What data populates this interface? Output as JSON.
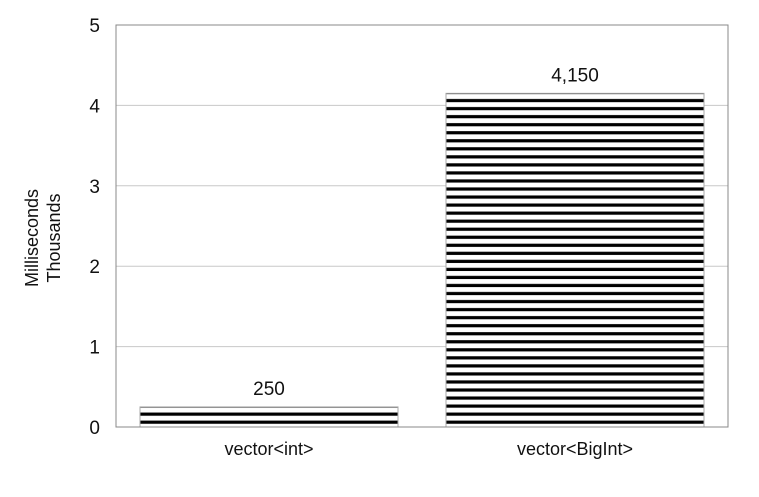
{
  "chart_data": {
    "type": "bar",
    "categories": [
      "vector<int>",
      "vector<BigInt>"
    ],
    "values": [
      0.25,
      4.15
    ],
    "data_labels": [
      "250",
      "4,150"
    ],
    "ylabel_line1": "Milliseconds",
    "ylabel_line2": "Thousands",
    "xlabel": "",
    "ylim": [
      0,
      5
    ],
    "yticks": [
      0,
      1,
      2,
      3,
      4,
      5
    ],
    "grid": true,
    "bar_fill": "horizontal-stripes",
    "colors": {
      "stripe": "#000000",
      "grid": "#c8c8c8",
      "axis": "#888888",
      "bar_outline": "#aaaaaa"
    }
  }
}
